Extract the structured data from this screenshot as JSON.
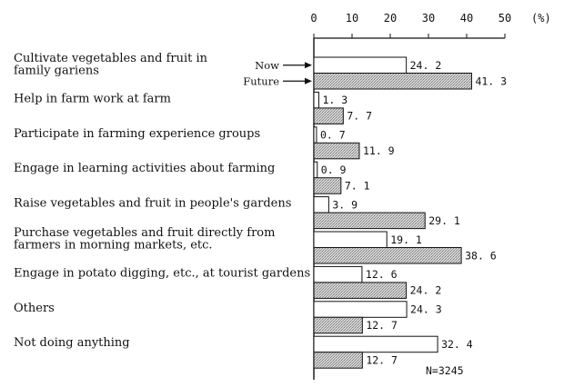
{
  "chart_data": {
    "type": "bar",
    "orientation": "horizontal",
    "unit_label": "(%)",
    "xlim": [
      0,
      50
    ],
    "xticks": [
      0,
      10,
      20,
      30,
      40,
      50
    ],
    "grid": false,
    "categories": [
      [
        "Cultivate vegetables and fruit in",
        "family gariens"
      ],
      [
        "Help in farm work at farm"
      ],
      [
        "Participate in farming experience groups"
      ],
      [
        "Engage in learning activities about farming"
      ],
      [
        "Raise vegetables and fruit in people's gardens"
      ],
      [
        "Purchase vegetables and fruit directly from",
        "farmers  in morning markets, etc."
      ],
      [
        "Engage in potato digging, etc., at tourist gardens"
      ],
      [
        "Others"
      ],
      [
        "Not doing anything"
      ]
    ],
    "series": [
      {
        "name": "Now",
        "color": "#ffffff",
        "values": [
          24.2,
          1.3,
          0.7,
          0.9,
          3.9,
          19.1,
          12.6,
          24.3,
          32.4
        ],
        "labels": [
          "24. 2",
          "1. 3",
          "0. 7",
          "0. 9",
          "3. 9",
          "19. 1",
          "12. 6",
          "24. 3",
          "32. 4"
        ]
      },
      {
        "name": "Future",
        "color": "#c8c8c8",
        "values": [
          41.3,
          7.7,
          11.9,
          7.1,
          29.1,
          38.6,
          24.2,
          12.7,
          12.7
        ],
        "labels": [
          "41. 3",
          "7. 7",
          "11. 9",
          "7. 1",
          "29. 1",
          "38. 6",
          "24. 2",
          "12. 7",
          "12. 7"
        ]
      }
    ],
    "note": "N=3245"
  }
}
